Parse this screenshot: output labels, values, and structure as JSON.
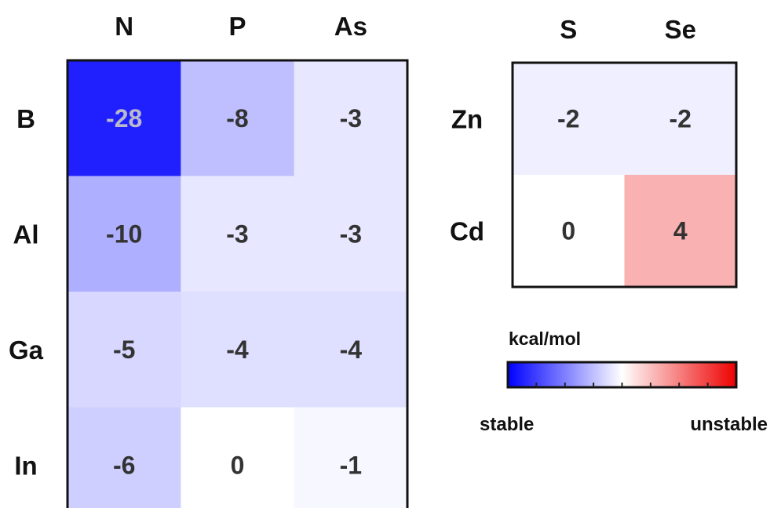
{
  "chart_data": [
    {
      "type": "heatmap",
      "title": "",
      "columns": [
        "N",
        "P",
        "As"
      ],
      "rows": [
        "B",
        "Al",
        "Ga",
        "In"
      ],
      "values": [
        [
          -28,
          -8,
          -3
        ],
        [
          -10,
          -3,
          -3
        ],
        [
          -5,
          -4,
          -4
        ],
        [
          -6,
          0,
          -1
        ]
      ]
    },
    {
      "type": "heatmap",
      "title": "",
      "columns": [
        "S",
        "Se"
      ],
      "rows": [
        "Zn",
        "Cd"
      ],
      "values": [
        [
          -2,
          -2
        ],
        [
          0,
          4
        ]
      ]
    }
  ],
  "colorbar": {
    "unit_label": "kcal/mol",
    "min_label": "stable",
    "max_label": "unstable",
    "min_color": "#0000ff",
    "mid_color": "#ffffff",
    "max_color": "#ee0000"
  }
}
